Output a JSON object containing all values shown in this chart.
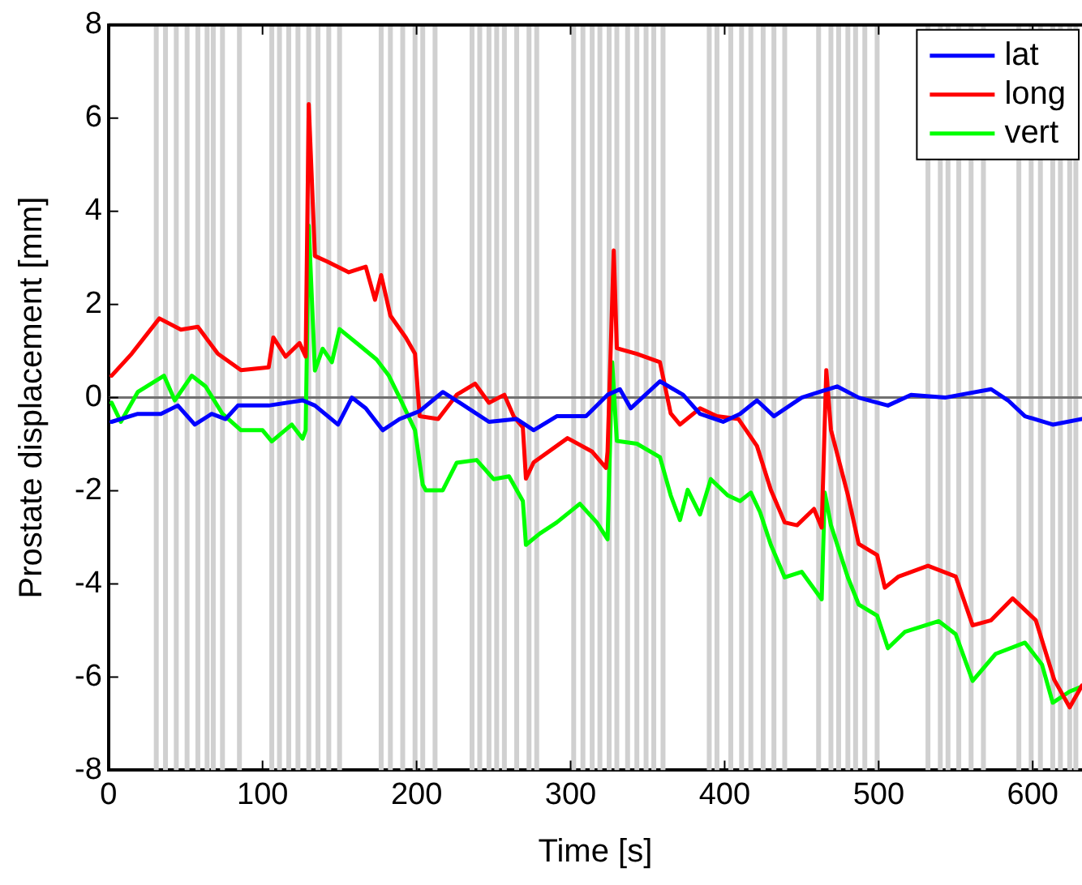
{
  "chart_data": {
    "type": "line",
    "xlabel": "Time [s]",
    "ylabel": "Prostate displacement [mm]",
    "xlim": [
      0,
      632
    ],
    "xticks": [
      0,
      100,
      200,
      300,
      400,
      500,
      600
    ],
    "ylim": [
      -8,
      8
    ],
    "yticks": [
      -8,
      -6,
      -4,
      -2,
      0,
      2,
      4,
      6,
      8
    ],
    "grid": false,
    "legend": "top right",
    "marker": "none",
    "line_style": "solid",
    "series": [
      {
        "name": "lat",
        "color": "#0000ff",
        "x": [
          2,
          19,
          34,
          45,
          56,
          67,
          76,
          84,
          104,
          126,
          134,
          149,
          158,
          167,
          178,
          189,
          202,
          217,
          228,
          247,
          265,
          276,
          291,
          310,
          324,
          332,
          339,
          358,
          373,
          384,
          399,
          410,
          421,
          432,
          450,
          473,
          487,
          506,
          521,
          543,
          573,
          584,
          595,
          613,
          632
        ],
        "values": [
          -0.52,
          -0.35,
          -0.35,
          -0.17,
          -0.58,
          -0.35,
          -0.46,
          -0.17,
          -0.17,
          -0.06,
          -0.17,
          -0.58,
          0,
          -0.23,
          -0.7,
          -0.46,
          -0.29,
          0.12,
          -0.11,
          -0.52,
          -0.46,
          -0.7,
          -0.4,
          -0.4,
          0.06,
          0.18,
          -0.23,
          0.35,
          0.06,
          -0.35,
          -0.52,
          -0.35,
          -0.06,
          -0.4,
          0,
          0.24,
          0,
          -0.17,
          0.06,
          0,
          0.18,
          -0.06,
          -0.4,
          -0.58,
          -0.46
        ]
      },
      {
        "name": "long",
        "color": "#ff0000",
        "x": [
          2,
          15,
          33,
          47,
          58,
          71,
          86,
          104,
          107,
          115,
          124,
          128,
          130,
          134,
          142,
          156,
          167,
          173,
          177,
          183,
          193,
          199,
          202,
          214,
          226,
          238,
          247,
          257,
          263,
          269,
          271,
          276,
          298,
          314,
          323,
          324,
          328,
          330,
          343,
          358,
          365,
          371,
          384,
          395,
          409,
          421,
          430,
          439,
          447,
          458,
          463,
          466,
          469,
          480,
          487,
          499,
          504,
          513,
          532,
          550,
          561,
          573,
          587,
          602,
          614,
          624,
          632
        ],
        "values": [
          0.47,
          0.94,
          1.7,
          1.46,
          1.52,
          0.94,
          0.59,
          0.65,
          1.29,
          0.88,
          1.17,
          0.88,
          6.3,
          3.04,
          2.92,
          2.69,
          2.81,
          2.1,
          2.63,
          1.76,
          1.29,
          0.94,
          -0.4,
          -0.46,
          0.06,
          0.3,
          -0.11,
          0.06,
          -0.4,
          -0.64,
          -1.74,
          -1.39,
          -0.87,
          -1.16,
          -1.51,
          -1.16,
          3.16,
          1.06,
          0.94,
          0.76,
          -0.34,
          -0.58,
          -0.23,
          -0.4,
          -0.46,
          -1.04,
          -1.98,
          -2.68,
          -2.74,
          -2.39,
          -2.79,
          0.59,
          -0.69,
          -2.09,
          -3.14,
          -3.38,
          -4.08,
          -3.84,
          -3.61,
          -3.84,
          -4.89,
          -4.78,
          -4.31,
          -4.78,
          -6.06,
          -6.65,
          -6.18
        ]
      },
      {
        "name": "vert",
        "color": "#00ff00",
        "x": [
          2,
          8,
          19,
          36,
          43,
          54,
          63,
          74,
          86,
          100,
          106,
          119,
          126,
          128,
          130,
          134,
          139,
          145,
          150,
          163,
          174,
          182,
          189,
          199,
          204,
          206,
          217,
          226,
          239,
          250,
          260,
          269,
          271,
          280,
          291,
          306,
          317,
          324,
          327,
          330,
          343,
          358,
          365,
          371,
          376,
          384,
          391,
          402,
          410,
          417,
          423,
          430,
          439,
          450,
          463,
          465,
          469,
          480,
          487,
          499,
          506,
          517,
          539,
          550,
          561,
          576,
          595,
          606,
          613,
          624,
          632
        ],
        "values": [
          -0.11,
          -0.52,
          0.12,
          0.47,
          -0.06,
          0.47,
          0.24,
          -0.35,
          -0.7,
          -0.7,
          -0.94,
          -0.58,
          -0.88,
          -0.7,
          3.69,
          0.58,
          1.05,
          0.76,
          1.47,
          1.12,
          0.82,
          0.47,
          0,
          -0.7,
          -1.87,
          -1.99,
          -1.99,
          -1.4,
          -1.34,
          -1.75,
          -1.69,
          -2.22,
          -3.16,
          -2.92,
          -2.68,
          -2.28,
          -2.68,
          -3.04,
          0.76,
          -0.93,
          -0.99,
          -1.28,
          -2.1,
          -2.63,
          -1.98,
          -2.51,
          -1.75,
          -2.1,
          -2.22,
          -2.04,
          -2.46,
          -3.16,
          -3.86,
          -3.74,
          -4.33,
          -2.04,
          -2.74,
          -3.86,
          -4.44,
          -4.68,
          -5.38,
          -5.03,
          -4.8,
          -5.08,
          -6.08,
          -5.5,
          -5.26,
          -5.73,
          -6.55,
          -6.31,
          -6.2
        ]
      }
    ],
    "ref_lines": [
      {
        "axis": "y",
        "value": 0,
        "color": "#707070"
      },
      {
        "axis": "x",
        "value": 31,
        "color": "#d0d0d0"
      },
      {
        "axis": "x",
        "value": 37,
        "color": "#d0d0d0"
      },
      {
        "axis": "x",
        "value": 44,
        "color": "#d0d0d0"
      },
      {
        "axis": "x",
        "value": 51,
        "color": "#d0d0d0"
      },
      {
        "axis": "x",
        "value": 58,
        "color": "#d0d0d0"
      },
      {
        "axis": "x",
        "value": 64,
        "color": "#d0d0d0"
      },
      {
        "axis": "x",
        "value": 68,
        "color": "#d0d0d0"
      },
      {
        "axis": "x",
        "value": 74,
        "color": "#d0d0d0"
      },
      {
        "axis": "x",
        "value": 85,
        "color": "#d0d0d0"
      },
      {
        "axis": "x",
        "value": 106,
        "color": "#d0d0d0"
      },
      {
        "axis": "x",
        "value": 111,
        "color": "#d0d0d0"
      },
      {
        "axis": "x",
        "value": 117,
        "color": "#d0d0d0"
      },
      {
        "axis": "x",
        "value": 123,
        "color": "#d0d0d0"
      },
      {
        "axis": "x",
        "value": 130,
        "color": "#d0d0d0"
      },
      {
        "axis": "x",
        "value": 136,
        "color": "#d0d0d0"
      },
      {
        "axis": "x",
        "value": 143,
        "color": "#d0d0d0"
      },
      {
        "axis": "x",
        "value": 150,
        "color": "#d0d0d0"
      },
      {
        "axis": "x",
        "value": 177,
        "color": "#d0d0d0"
      },
      {
        "axis": "x",
        "value": 183,
        "color": "#d0d0d0"
      },
      {
        "axis": "x",
        "value": 191,
        "color": "#d0d0d0"
      },
      {
        "axis": "x",
        "value": 199,
        "color": "#d0d0d0"
      },
      {
        "axis": "x",
        "value": 204,
        "color": "#d0d0d0"
      },
      {
        "axis": "x",
        "value": 212,
        "color": "#d0d0d0"
      },
      {
        "axis": "x",
        "value": 236,
        "color": "#d0d0d0"
      },
      {
        "axis": "x",
        "value": 241,
        "color": "#d0d0d0"
      },
      {
        "axis": "x",
        "value": 247,
        "color": "#d0d0d0"
      },
      {
        "axis": "x",
        "value": 252,
        "color": "#d0d0d0"
      },
      {
        "axis": "x",
        "value": 257,
        "color": "#d0d0d0"
      },
      {
        "axis": "x",
        "value": 265,
        "color": "#d0d0d0"
      },
      {
        "axis": "x",
        "value": 273,
        "color": "#d0d0d0"
      },
      {
        "axis": "x",
        "value": 278,
        "color": "#d0d0d0"
      },
      {
        "axis": "x",
        "value": 302,
        "color": "#d0d0d0"
      },
      {
        "axis": "x",
        "value": 308,
        "color": "#d0d0d0"
      },
      {
        "axis": "x",
        "value": 314,
        "color": "#d0d0d0"
      },
      {
        "axis": "x",
        "value": 319,
        "color": "#d0d0d0"
      },
      {
        "axis": "x",
        "value": 325,
        "color": "#d0d0d0"
      },
      {
        "axis": "x",
        "value": 330,
        "color": "#d0d0d0"
      },
      {
        "axis": "x",
        "value": 337,
        "color": "#d0d0d0"
      },
      {
        "axis": "x",
        "value": 343,
        "color": "#d0d0d0"
      },
      {
        "axis": "x",
        "value": 349,
        "color": "#d0d0d0"
      },
      {
        "axis": "x",
        "value": 354,
        "color": "#d0d0d0"
      },
      {
        "axis": "x",
        "value": 360,
        "color": "#d0d0d0"
      },
      {
        "axis": "x",
        "value": 390,
        "color": "#d0d0d0"
      },
      {
        "axis": "x",
        "value": 395,
        "color": "#d0d0d0"
      },
      {
        "axis": "x",
        "value": 404,
        "color": "#d0d0d0"
      },
      {
        "axis": "x",
        "value": 411,
        "color": "#d0d0d0"
      },
      {
        "axis": "x",
        "value": 417,
        "color": "#d0d0d0"
      },
      {
        "axis": "x",
        "value": 425,
        "color": "#d0d0d0"
      },
      {
        "axis": "x",
        "value": 432,
        "color": "#d0d0d0"
      },
      {
        "axis": "x",
        "value": 439,
        "color": "#d0d0d0"
      },
      {
        "axis": "x",
        "value": 461,
        "color": "#d0d0d0"
      },
      {
        "axis": "x",
        "value": 469,
        "color": "#d0d0d0"
      },
      {
        "axis": "x",
        "value": 474,
        "color": "#d0d0d0"
      },
      {
        "axis": "x",
        "value": 480,
        "color": "#d0d0d0"
      },
      {
        "axis": "x",
        "value": 485,
        "color": "#d0d0d0"
      },
      {
        "axis": "x",
        "value": 491,
        "color": "#d0d0d0"
      },
      {
        "axis": "x",
        "value": 499,
        "color": "#d0d0d0"
      },
      {
        "axis": "x",
        "value": 532,
        "color": "#d0d0d0"
      },
      {
        "axis": "x",
        "value": 540,
        "color": "#d0d0d0"
      },
      {
        "axis": "x",
        "value": 545,
        "color": "#d0d0d0"
      },
      {
        "axis": "x",
        "value": 552,
        "color": "#d0d0d0"
      },
      {
        "axis": "x",
        "value": 560,
        "color": "#d0d0d0"
      },
      {
        "axis": "x",
        "value": 568,
        "color": "#d0d0d0"
      },
      {
        "axis": "x",
        "value": 591,
        "color": "#d0d0d0"
      },
      {
        "axis": "x",
        "value": 599,
        "color": "#d0d0d0"
      },
      {
        "axis": "x",
        "value": 605,
        "color": "#d0d0d0"
      },
      {
        "axis": "x",
        "value": 613,
        "color": "#d0d0d0"
      },
      {
        "axis": "x",
        "value": 618,
        "color": "#d0d0d0"
      },
      {
        "axis": "x",
        "value": 624,
        "color": "#d0d0d0"
      },
      {
        "axis": "x",
        "value": 628,
        "color": "#d0d0d0"
      }
    ]
  }
}
